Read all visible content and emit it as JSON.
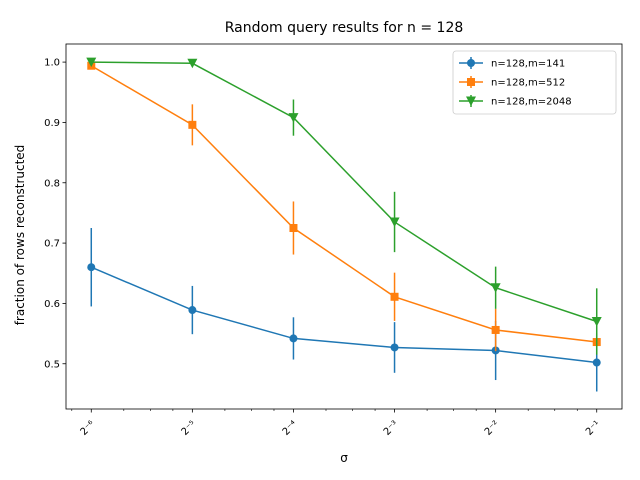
{
  "chart_data": {
    "type": "line",
    "title": "Random query results for n = 128",
    "xlabel": "σ",
    "ylabel": "fraction of rows reconstructed",
    "x_scale": "log2",
    "x": [
      0.015625,
      0.03125,
      0.0625,
      0.125,
      0.25,
      0.5
    ],
    "x_tick_labels": [
      "2⁻⁶",
      "2⁻⁵",
      "2⁻⁴",
      "2⁻³",
      "2⁻²",
      "2⁻¹"
    ],
    "ylim": [
      0.425,
      1.03
    ],
    "y_ticks": [
      0.5,
      0.6,
      0.7,
      0.8,
      0.9,
      1.0
    ],
    "y_tick_labels": [
      "0.5",
      "0.6",
      "0.7",
      "0.8",
      "0.9",
      "1.0"
    ],
    "grid": false,
    "legend_position": "top-right",
    "series": [
      {
        "name": "n=128,m=141",
        "color": "#1f77b4",
        "marker": "circle",
        "values": [
          0.66,
          0.589,
          0.542,
          0.527,
          0.522,
          0.502
        ],
        "errors": [
          0.065,
          0.04,
          0.035,
          0.042,
          0.049,
          0.048
        ]
      },
      {
        "name": "n=128,m=512",
        "color": "#ff7f0e",
        "marker": "square",
        "values": [
          0.994,
          0.896,
          0.725,
          0.611,
          0.556,
          0.536
        ],
        "errors": [
          0.005,
          0.034,
          0.044,
          0.04,
          0.035,
          0.008
        ]
      },
      {
        "name": "n=128,m=2048",
        "color": "#2ca02c",
        "marker": "triangle-down",
        "values": [
          1.0,
          0.998,
          0.908,
          0.735,
          0.626,
          0.57
        ],
        "errors": [
          0.002,
          0.002,
          0.03,
          0.05,
          0.035,
          0.055
        ]
      }
    ]
  }
}
